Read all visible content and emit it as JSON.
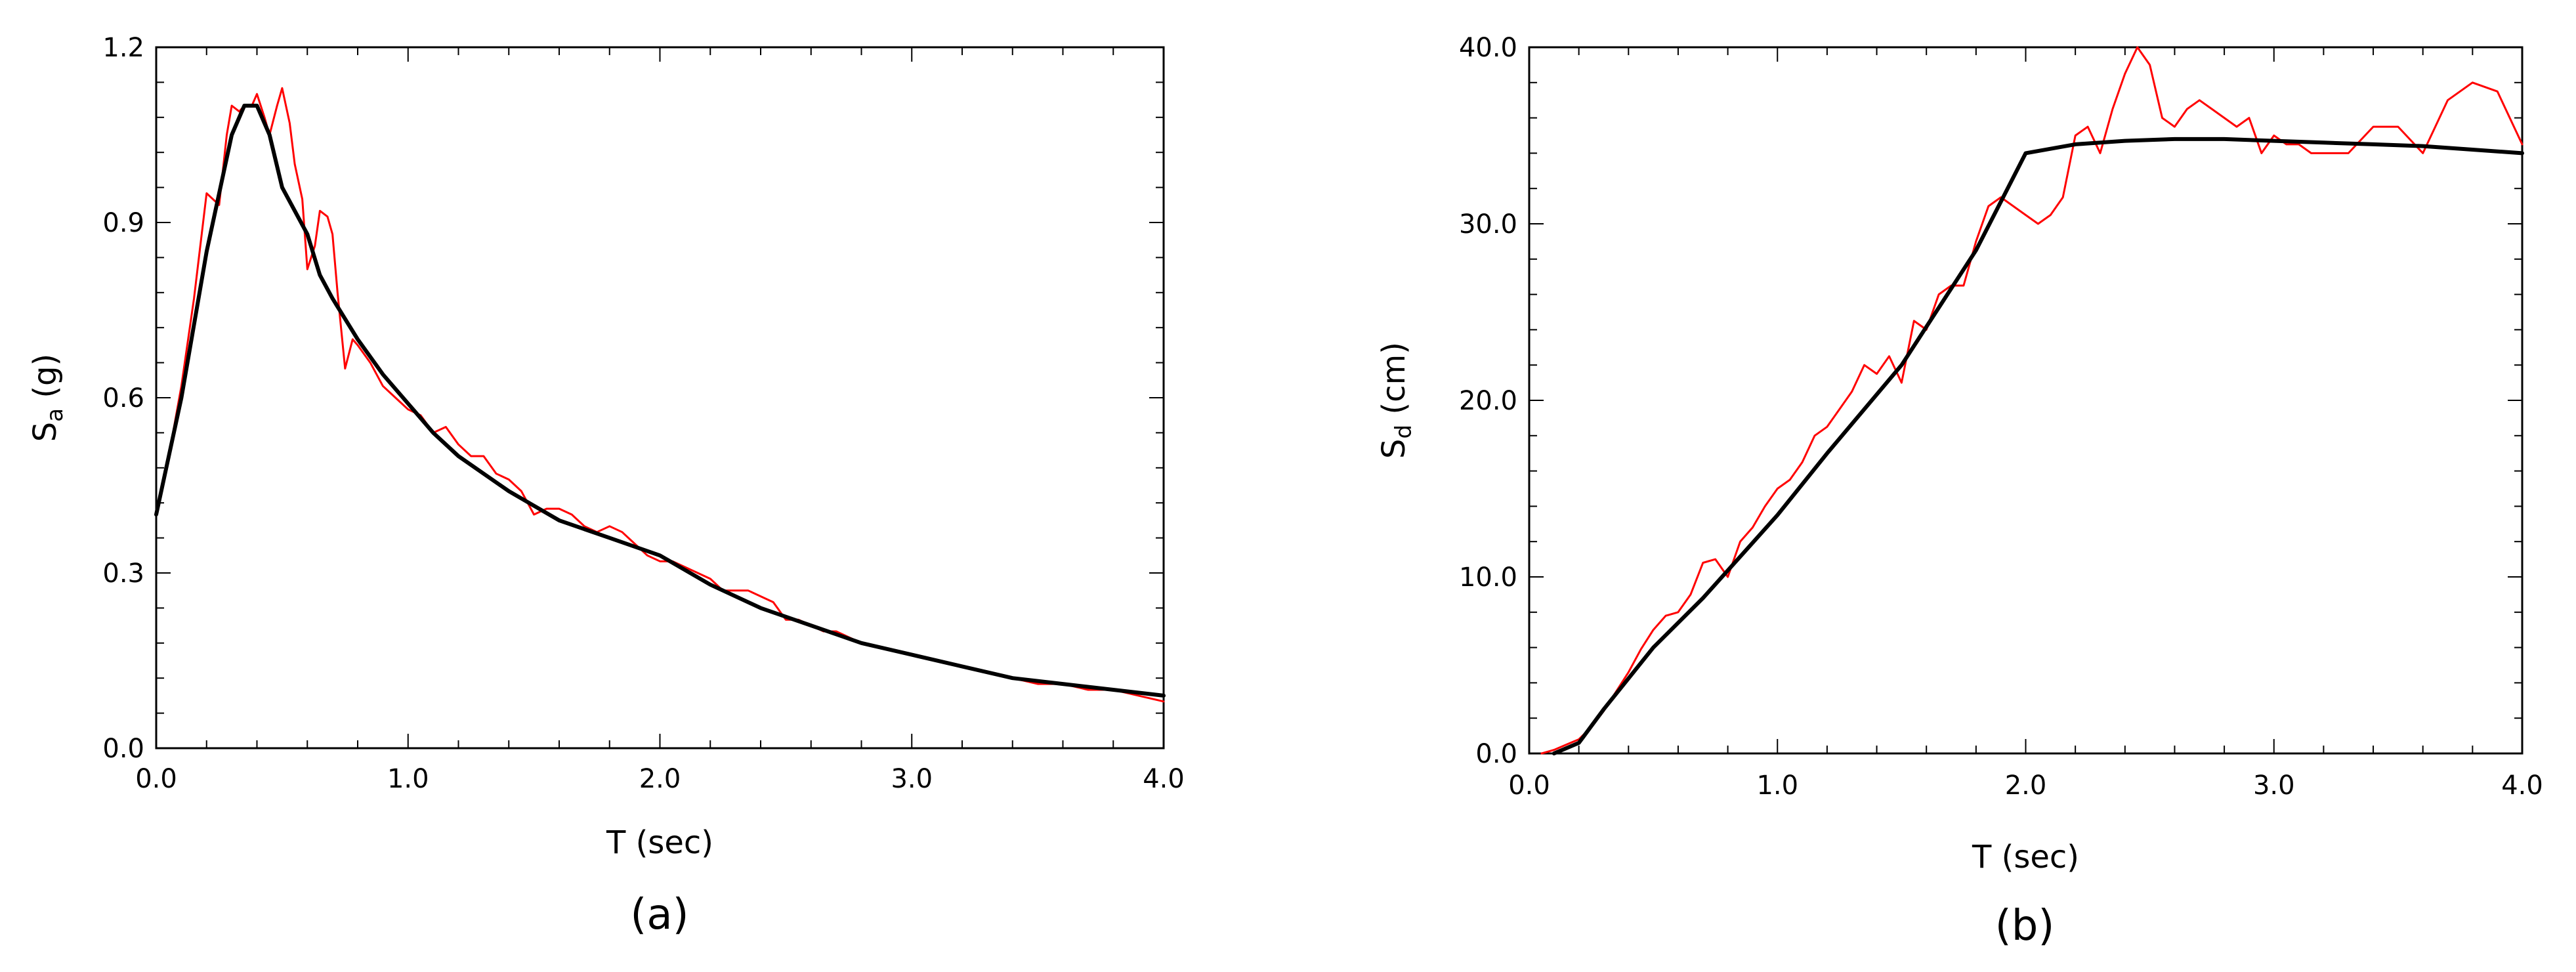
{
  "chart_data": [
    {
      "type": "line",
      "panel_label": "(a)",
      "xlabel": "T (sec)",
      "ylabel_symbol": "S",
      "ylabel_sub": "a",
      "ylabel_unit": "(g)",
      "xlim": [
        0,
        4.0
      ],
      "ylim": [
        0,
        1.2
      ],
      "x_ticks": [
        "0.0",
        "1.0",
        "2.0",
        "3.0",
        "4.0"
      ],
      "y_ticks": [
        "0.0",
        "0.3",
        "0.6",
        "0.9",
        "1.2"
      ],
      "grid": false,
      "series": [
        {
          "color": "#ff0000",
          "x": [
            0.0,
            0.05,
            0.1,
            0.15,
            0.2,
            0.25,
            0.28,
            0.3,
            0.33,
            0.35,
            0.38,
            0.4,
            0.43,
            0.45,
            0.48,
            0.5,
            0.53,
            0.55,
            0.58,
            0.6,
            0.63,
            0.65,
            0.68,
            0.7,
            0.72,
            0.75,
            0.78,
            0.8,
            0.85,
            0.9,
            0.95,
            1.0,
            1.05,
            1.1,
            1.15,
            1.2,
            1.25,
            1.3,
            1.35,
            1.4,
            1.45,
            1.5,
            1.55,
            1.6,
            1.65,
            1.7,
            1.75,
            1.8,
            1.85,
            1.9,
            1.95,
            2.0,
            2.05,
            2.1,
            2.15,
            2.2,
            2.25,
            2.3,
            2.35,
            2.4,
            2.45,
            2.5,
            2.55,
            2.6,
            2.65,
            2.7,
            2.8,
            2.9,
            3.0,
            3.1,
            3.2,
            3.3,
            3.4,
            3.5,
            3.6,
            3.7,
            3.8,
            3.9,
            4.0
          ],
          "y": [
            0.4,
            0.5,
            0.62,
            0.77,
            0.95,
            0.93,
            1.05,
            1.1,
            1.09,
            1.1,
            1.1,
            1.12,
            1.08,
            1.05,
            1.1,
            1.13,
            1.07,
            1.0,
            0.94,
            0.82,
            0.86,
            0.92,
            0.91,
            0.88,
            0.78,
            0.65,
            0.7,
            0.69,
            0.66,
            0.62,
            0.6,
            0.58,
            0.57,
            0.54,
            0.55,
            0.52,
            0.5,
            0.5,
            0.47,
            0.46,
            0.44,
            0.4,
            0.41,
            0.41,
            0.4,
            0.38,
            0.37,
            0.38,
            0.37,
            0.35,
            0.33,
            0.32,
            0.32,
            0.31,
            0.3,
            0.29,
            0.27,
            0.27,
            0.27,
            0.26,
            0.25,
            0.22,
            0.22,
            0.21,
            0.2,
            0.2,
            0.18,
            0.17,
            0.16,
            0.15,
            0.14,
            0.13,
            0.12,
            0.11,
            0.11,
            0.1,
            0.1,
            0.09,
            0.08
          ]
        },
        {
          "color": "#000000",
          "x": [
            0.0,
            0.1,
            0.2,
            0.3,
            0.35,
            0.4,
            0.45,
            0.5,
            0.6,
            0.65,
            0.7,
            0.8,
            0.9,
            1.0,
            1.1,
            1.2,
            1.4,
            1.6,
            1.8,
            2.0,
            2.2,
            2.4,
            2.6,
            2.8,
            3.0,
            3.2,
            3.4,
            3.6,
            3.8,
            4.0
          ],
          "y": [
            0.4,
            0.6,
            0.85,
            1.05,
            1.1,
            1.1,
            1.05,
            0.96,
            0.88,
            0.81,
            0.77,
            0.7,
            0.64,
            0.59,
            0.54,
            0.5,
            0.44,
            0.39,
            0.36,
            0.33,
            0.28,
            0.24,
            0.21,
            0.18,
            0.16,
            0.14,
            0.12,
            0.11,
            0.1,
            0.09
          ]
        }
      ]
    },
    {
      "type": "line",
      "panel_label": "(b)",
      "xlabel": "T (sec)",
      "ylabel_symbol": "S",
      "ylabel_sub": "d",
      "ylabel_unit": "(cm)",
      "xlim": [
        0,
        4.0
      ],
      "ylim": [
        0,
        40.0
      ],
      "x_ticks": [
        "0.0",
        "1.0",
        "2.0",
        "3.0",
        "4.0"
      ],
      "y_ticks": [
        "0.0",
        "10.0",
        "20.0",
        "30.0",
        "40.0"
      ],
      "grid": false,
      "series": [
        {
          "color": "#ff0000",
          "x": [
            0.05,
            0.1,
            0.15,
            0.2,
            0.25,
            0.3,
            0.35,
            0.4,
            0.45,
            0.5,
            0.55,
            0.6,
            0.65,
            0.7,
            0.75,
            0.8,
            0.85,
            0.9,
            0.95,
            1.0,
            1.05,
            1.1,
            1.15,
            1.2,
            1.25,
            1.3,
            1.35,
            1.4,
            1.45,
            1.5,
            1.55,
            1.6,
            1.65,
            1.7,
            1.75,
            1.8,
            1.85,
            1.9,
            1.95,
            2.0,
            2.05,
            2.1,
            2.15,
            2.2,
            2.25,
            2.3,
            2.35,
            2.4,
            2.45,
            2.5,
            2.55,
            2.6,
            2.65,
            2.7,
            2.75,
            2.8,
            2.85,
            2.9,
            2.95,
            3.0,
            3.05,
            3.1,
            3.15,
            3.2,
            3.3,
            3.4,
            3.5,
            3.6,
            3.65,
            3.7,
            3.8,
            3.9,
            4.0
          ],
          "y": [
            0,
            0.2,
            0.5,
            0.8,
            1.5,
            2.4,
            3.5,
            4.6,
            5.9,
            7.0,
            7.8,
            8.0,
            9.0,
            10.8,
            11.0,
            10.0,
            12.0,
            12.8,
            14.0,
            15.0,
            15.5,
            16.5,
            18.0,
            18.5,
            19.5,
            20.5,
            22.0,
            21.5,
            22.5,
            21.0,
            24.5,
            24.0,
            26.0,
            26.5,
            26.5,
            29.0,
            31.0,
            31.5,
            31.0,
            30.5,
            30.0,
            30.5,
            31.5,
            35.0,
            35.5,
            34.0,
            36.5,
            38.5,
            40.0,
            39.0,
            36.0,
            35.5,
            36.5,
            37.0,
            36.5,
            36.0,
            35.5,
            36.0,
            34.0,
            35.0,
            34.5,
            34.5,
            34.0,
            34.0,
            34.0,
            35.5,
            35.5,
            34.0,
            35.5,
            37.0,
            38.0,
            37.5,
            34.5
          ]
        },
        {
          "color": "#000000",
          "x": [
            0.1,
            0.2,
            0.3,
            0.5,
            0.7,
            1.0,
            1.2,
            1.5,
            1.8,
            2.0,
            2.2,
            2.4,
            2.6,
            2.8,
            3.0,
            3.2,
            3.4,
            3.6,
            3.8,
            4.0
          ],
          "y": [
            0,
            0.6,
            2.5,
            6.0,
            8.8,
            13.5,
            17.0,
            22.0,
            28.5,
            34.0,
            34.5,
            34.7,
            34.8,
            34.8,
            34.7,
            34.6,
            34.5,
            34.4,
            34.2,
            34.0
          ]
        }
      ]
    }
  ]
}
